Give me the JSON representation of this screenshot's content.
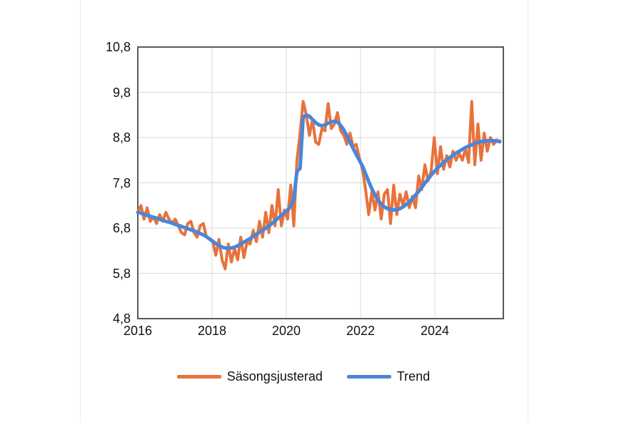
{
  "chart_data": {
    "type": "line",
    "title": "",
    "xlabel": "",
    "ylabel": "",
    "grid": true,
    "legend_position": "bottom",
    "x_axis": {
      "start_year": 2016,
      "end_year_fraction": 2025.75,
      "tick_labels": [
        "2016",
        "2018",
        "2020",
        "2022",
        "2024"
      ],
      "tick_years": [
        2016,
        2018,
        2020,
        2022,
        2024
      ]
    },
    "y_axis": {
      "range": [
        4.8,
        10.8
      ],
      "tick_labels": [
        "10,8",
        "9,8",
        "8,8",
        "7,8",
        "6,8",
        "5,8",
        "4,8"
      ],
      "tick_values": [
        10.8,
        9.8,
        8.8,
        7.8,
        6.8,
        5.8,
        4.8
      ],
      "decimal_separator": ","
    },
    "frequency": "monthly",
    "series": [
      {
        "name": "Säsongsjusterad",
        "color": "#E8723C",
        "stroke_width": 4,
        "values": [
          7.15,
          7.3,
          7.0,
          7.25,
          6.95,
          7.05,
          6.9,
          7.1,
          6.95,
          7.15,
          7.0,
          6.9,
          7.0,
          6.85,
          6.7,
          6.65,
          6.9,
          6.95,
          6.7,
          6.6,
          6.85,
          6.9,
          6.6,
          6.55,
          6.5,
          6.2,
          6.55,
          6.1,
          5.9,
          6.45,
          6.05,
          6.35,
          6.1,
          6.6,
          6.15,
          6.5,
          6.45,
          6.75,
          6.5,
          6.95,
          6.6,
          7.15,
          6.7,
          7.3,
          6.85,
          7.65,
          6.85,
          7.2,
          7.0,
          7.75,
          6.85,
          8.3,
          8.9,
          9.6,
          9.3,
          8.85,
          9.2,
          8.7,
          8.65,
          9.0,
          8.95,
          9.55,
          9.0,
          9.1,
          9.35,
          8.95,
          8.85,
          8.65,
          8.9,
          8.6,
          8.65,
          8.35,
          8.1,
          7.65,
          7.1,
          7.6,
          7.2,
          7.6,
          7.0,
          7.55,
          7.65,
          6.9,
          7.75,
          7.1,
          7.55,
          7.3,
          7.6,
          7.25,
          7.5,
          7.25,
          7.95,
          7.65,
          8.2,
          7.85,
          8.05,
          8.8,
          8.0,
          8.6,
          8.1,
          8.4,
          8.15,
          8.5,
          8.3,
          8.45,
          8.3,
          8.55,
          8.25,
          9.6,
          8.2,
          9.1,
          8.3,
          8.9,
          8.5,
          8.8,
          8.65,
          8.75,
          8.7
        ]
      },
      {
        "name": "Trend",
        "color": "#4A86D8",
        "stroke_width": 5,
        "values": [
          7.15,
          7.13,
          7.11,
          7.08,
          7.06,
          7.04,
          7.02,
          7.0,
          6.97,
          6.95,
          6.93,
          6.91,
          6.88,
          6.86,
          6.84,
          6.81,
          6.79,
          6.76,
          6.74,
          6.71,
          6.68,
          6.65,
          6.61,
          6.56,
          6.51,
          6.46,
          6.42,
          6.38,
          6.36,
          6.35,
          6.36,
          6.38,
          6.41,
          6.45,
          6.49,
          6.53,
          6.57,
          6.62,
          6.66,
          6.71,
          6.75,
          6.8,
          6.85,
          6.9,
          6.96,
          7.02,
          7.08,
          7.14,
          7.2,
          7.28,
          7.45,
          8.05,
          8.12,
          9.25,
          9.3,
          9.27,
          9.2,
          9.13,
          9.08,
          9.06,
          9.08,
          9.12,
          9.15,
          9.16,
          9.14,
          9.07,
          8.97,
          8.84,
          8.7,
          8.56,
          8.43,
          8.3,
          8.17,
          8.0,
          7.83,
          7.67,
          7.53,
          7.42,
          7.33,
          7.27,
          7.23,
          7.21,
          7.2,
          7.21,
          7.23,
          7.27,
          7.32,
          7.38,
          7.45,
          7.53,
          7.61,
          7.7,
          7.79,
          7.88,
          7.97,
          8.05,
          8.12,
          8.19,
          8.25,
          8.31,
          8.36,
          8.41,
          8.46,
          8.5,
          8.54,
          8.58,
          8.61,
          8.64,
          8.67,
          8.69,
          8.71,
          8.72,
          8.73,
          8.73,
          8.73,
          8.72,
          8.72
        ]
      }
    ],
    "colors": {
      "plot_border": "#595959",
      "gridline": "#d9d9d9",
      "tick_text": "#111111",
      "background": "#ffffff"
    }
  },
  "legend": {
    "items_from_series": true
  }
}
